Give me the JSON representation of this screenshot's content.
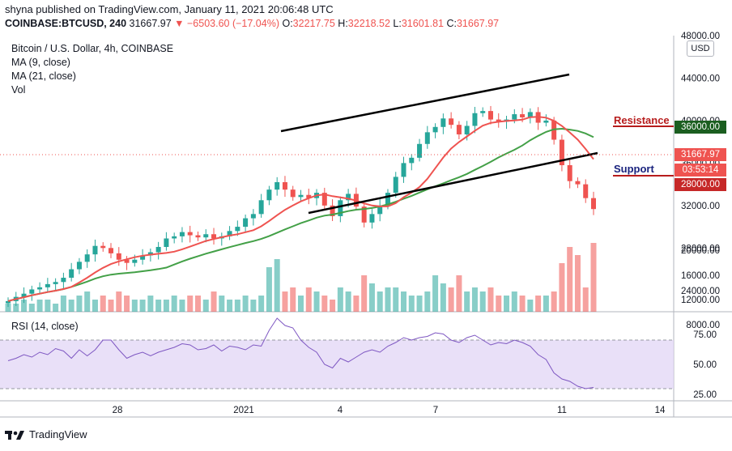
{
  "header": {
    "publish_line": "shyna published on TradingView.com, January 11, 2021 20:06:48 UTC",
    "symbol": "COINBASE:BTCUSD, 240",
    "last": "31667.97",
    "change": "−6503.60 (−17.04%)",
    "o_label": "O:",
    "o_value": "32217.75",
    "h_label": "H:",
    "h_value": "32218.52",
    "l_label": "L:",
    "l_value": "31601.81",
    "c_label": "C:",
    "c_value": "31667.97"
  },
  "legend": {
    "title": "Bitcoin / U.S. Dollar, 4h, COINBASE",
    "ma9": "MA (9, close)",
    "ma21": "MA (21, close)",
    "vol": "Vol",
    "rsi": "RSI (14, close)"
  },
  "currency_button": "USD",
  "annotations": {
    "resistance": "Resistance",
    "support": "Support"
  },
  "price_tags": {
    "resistance": "36000.00",
    "current": "31667.97",
    "countdown": "03:53:14",
    "support": "28000.00"
  },
  "price_axis": [
    "48000.00",
    "44000.00",
    "40000.00",
    "36000.00",
    "32000.00",
    "28000.00",
    "24000.00",
    "20000.00",
    "16000.00",
    "12000.00",
    "8000.00"
  ],
  "rsi_axis": [
    "75.00",
    "50.00",
    "25.00"
  ],
  "time_axis": [
    "28",
    "2021",
    "4",
    "7",
    "11",
    "14"
  ],
  "footer": {
    "brand": "TradingView"
  },
  "colors": {
    "up": "#26a69a",
    "down": "#ef5350",
    "ma9": "#ef5350",
    "ma21": "#43a047",
    "rsi": "#7e57c2",
    "resistance_label": "#b71c1c",
    "support_label": "#1a237e"
  },
  "chart_data": {
    "type": "candlestick",
    "price_range": [
      22000,
      48000
    ],
    "rsi_range": [
      20,
      90
    ],
    "close": [
      23000,
      23400,
      23700,
      24100,
      24300,
      24600,
      24800,
      25200,
      26000,
      26700,
      27400,
      28200,
      28000,
      27500,
      26900,
      26600,
      26900,
      27300,
      27600,
      28100,
      28900,
      29100,
      29500,
      29200,
      29000,
      29300,
      28900,
      29100,
      29600,
      30000,
      30800,
      31200,
      32500,
      33500,
      34200,
      33500,
      32800,
      33000,
      32700,
      33200,
      32000,
      31000,
      32500,
      33100,
      31900,
      30400,
      31200,
      32000,
      33200,
      34700,
      36000,
      36500,
      37800,
      38900,
      39400,
      40200,
      39600,
      38700,
      39500,
      40700,
      40900,
      40100,
      39900,
      40100,
      40600,
      40300,
      40800,
      39800,
      40000,
      38200,
      35800,
      34300,
      34000,
      32700,
      31668
    ],
    "volume": [
      2,
      2,
      3,
      2,
      3,
      3,
      2,
      4,
      3,
      4,
      5,
      3,
      4,
      3,
      5,
      4,
      3,
      3,
      4,
      3,
      3,
      4,
      3,
      4,
      4,
      3,
      5,
      4,
      3,
      3,
      4,
      3,
      4,
      11,
      13,
      5,
      6,
      4,
      6,
      5,
      4,
      3,
      6,
      5,
      4,
      9,
      7,
      5,
      6,
      6,
      5,
      4,
      4,
      5,
      9,
      7,
      6,
      9,
      5,
      6,
      5,
      6,
      4,
      4,
      5,
      4,
      3,
      4,
      4,
      5,
      12,
      16,
      14,
      6,
      17
    ],
    "rsi": [
      53,
      55,
      58,
      56,
      60,
      58,
      63,
      61,
      55,
      62,
      57,
      62,
      70,
      70,
      62,
      55,
      58,
      60,
      57,
      60,
      62,
      64,
      67,
      66,
      62,
      63,
      66,
      61,
      65,
      64,
      62,
      66,
      65,
      78,
      88,
      82,
      80,
      70,
      64,
      60,
      50,
      47,
      55,
      52,
      56,
      60,
      62,
      60,
      65,
      68,
      72,
      70,
      72,
      73,
      76,
      75,
      70,
      68,
      72,
      74,
      70,
      66,
      68,
      67,
      70,
      68,
      65,
      58,
      54,
      43,
      38,
      36,
      32,
      30,
      31
    ]
  }
}
